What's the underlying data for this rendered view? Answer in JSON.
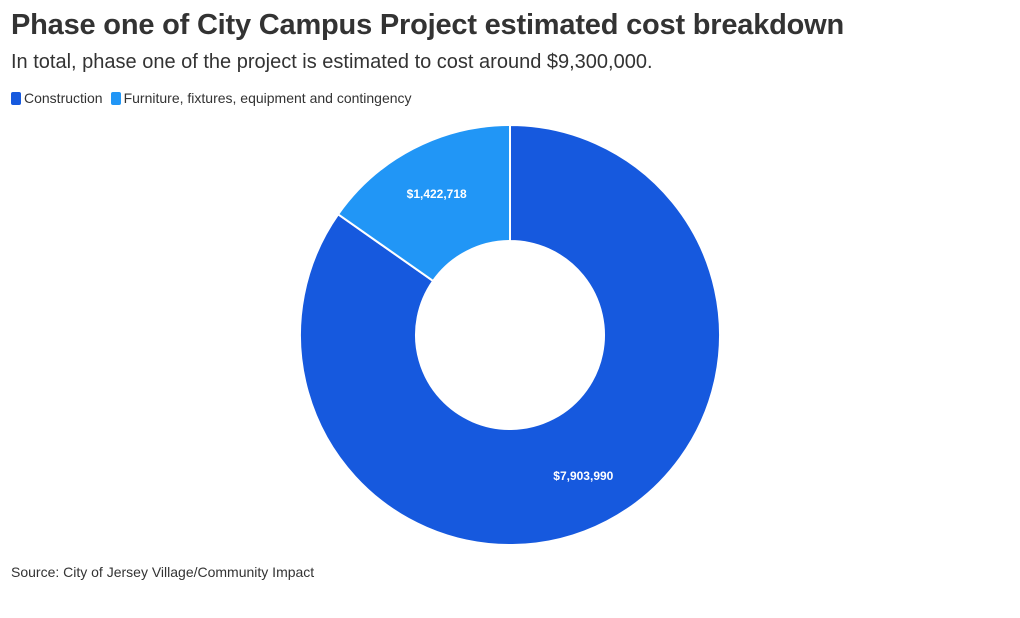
{
  "chart_data": {
    "type": "pie",
    "variant": "donut",
    "title": "Phase one of City Campus Project estimated cost breakdown",
    "subtitle": "In total, phase one of the project is estimated to cost around $9,300,000.",
    "legend_position": "top-left",
    "slices": [
      {
        "name": "Construction",
        "value": 7903990,
        "label": "$7,903,990",
        "color": "#1659de"
      },
      {
        "name": "Furniture, fixtures, equipment and contingency",
        "value": 1422718,
        "label": "$1,422,718",
        "color": "#2196f6"
      }
    ],
    "source": "Source: City of Jersey Village/Community Impact"
  }
}
